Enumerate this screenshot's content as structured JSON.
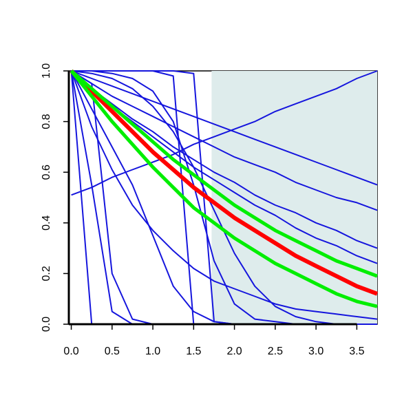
{
  "chart_data": {
    "type": "line",
    "x": [
      0,
      0.25,
      0.5,
      0.75,
      1,
      1.25,
      1.5,
      1.75,
      2,
      2.25,
      2.5,
      2.75,
      3,
      3.25,
      3.5,
      3.75
    ],
    "xlim": [
      -0.03,
      3.75
    ],
    "ylim": [
      0,
      1
    ],
    "xticks": [
      {
        "value": 0,
        "label": "0.0"
      },
      0.5,
      {
        "value": 1,
        "label": "1.0"
      },
      1.5,
      {
        "value": 2,
        "label": "2.0"
      },
      2.5,
      {
        "value": 3,
        "label": "3.0"
      },
      3.5
    ],
    "yticks": [
      {
        "value": 0,
        "label": "0.0"
      },
      0.2,
      0.4,
      0.6,
      0.8,
      {
        "value": 1,
        "label": "1.0"
      }
    ],
    "shaded_region": {
      "xmin": 1.72,
      "xmax": 3.75,
      "ymin": 0,
      "ymax": 1,
      "color": "#deecec"
    },
    "series": [
      {
        "color": "#1515dd",
        "line_width": 2,
        "values": [
          1,
          0.97,
          0.94,
          0.91,
          0.88,
          0.85,
          0.82,
          0.79,
          0.76,
          0.73,
          0.7,
          0.67,
          0.64,
          0.61,
          0.58,
          0.55
        ]
      },
      {
        "color": "#1515dd",
        "line_width": 2,
        "values": [
          0.51,
          0.54,
          0.58,
          0.61,
          0.64,
          0.67,
          0.71,
          0.74,
          0.77,
          0.8,
          0.84,
          0.87,
          0.9,
          0.93,
          0.97,
          1
        ]
      },
      {
        "color": "#1515dd",
        "line_width": 2,
        "values": [
          1,
          0.95,
          0.9,
          0.86,
          0.82,
          0.78,
          0.74,
          0.7,
          0.66,
          0.63,
          0.6,
          0.56,
          0.53,
          0.5,
          0.48,
          0.45
        ]
      },
      {
        "color": "#1515dd",
        "line_width": 2,
        "values": [
          1,
          0.93,
          0.87,
          0.81,
          0.76,
          0.7,
          0.65,
          0.6,
          0.56,
          0.51,
          0.47,
          0.44,
          0.4,
          0.37,
          0.33,
          0.3
        ]
      },
      {
        "color": "#1515dd",
        "line_width": 2,
        "values": [
          1,
          0.93,
          0.86,
          0.8,
          0.74,
          0.68,
          0.62,
          0.57,
          0.52,
          0.47,
          0.43,
          0.38,
          0.34,
          0.31,
          0.27,
          0.24
        ]
      },
      {
        "color": "#1515dd",
        "line_width": 2,
        "values": [
          1,
          1,
          1,
          1,
          1,
          0.98,
          0,
          0,
          0,
          0,
          0,
          0,
          0,
          0,
          0,
          0
        ]
      },
      {
        "color": "#1515dd",
        "line_width": 2,
        "values": [
          1,
          1,
          1,
          1,
          1,
          1,
          0.99,
          0.01,
          0,
          0,
          0,
          0,
          0,
          0,
          0,
          0
        ]
      },
      {
        "color": "#1515dd",
        "line_width": 2,
        "values": [
          1,
          0,
          0,
          0,
          0,
          0,
          0,
          0,
          0,
          0,
          0,
          0,
          0,
          0,
          0,
          0
        ]
      },
      {
        "color": "#1515dd",
        "line_width": 2,
        "values": [
          1,
          0.55,
          0.05,
          0,
          0,
          0,
          0,
          0,
          0,
          0,
          0,
          0,
          0,
          0,
          0,
          0
        ]
      },
      {
        "color": "#1515dd",
        "line_width": 2,
        "values": [
          1,
          0.78,
          0.61,
          0.47,
          0.37,
          0.29,
          0.22,
          0.17,
          0.14,
          0.11,
          0.08,
          0.06,
          0.05,
          0.04,
          0.03,
          0.02
        ]
      },
      {
        "color": "#1515dd",
        "line_width": 2,
        "values": [
          1,
          1,
          0.99,
          0.97,
          0.92,
          0.8,
          0.55,
          0.25,
          0.08,
          0.02,
          0.01,
          0,
          0,
          0,
          0,
          0
        ]
      },
      {
        "color": "#1515dd",
        "line_width": 2,
        "values": [
          1,
          0.85,
          0.7,
          0.55,
          0.35,
          0.15,
          0.05,
          0.01,
          0,
          0,
          0,
          0,
          0,
          0,
          0,
          0
        ]
      },
      {
        "color": "#1515dd",
        "line_width": 2,
        "values": [
          1,
          0.99,
          0.97,
          0.93,
          0.86,
          0.76,
          0.62,
          0.45,
          0.28,
          0.15,
          0.07,
          0.03,
          0.01,
          0,
          0,
          0
        ]
      },
      {
        "color": "#1515dd",
        "line_width": 2,
        "values": [
          1,
          0.95,
          0.2,
          0.02,
          0,
          0,
          0,
          0,
          0,
          0,
          0,
          0,
          0,
          0,
          0,
          0
        ]
      },
      {
        "color": "#ff0000",
        "line_width": 6,
        "values": [
          1,
          0.92,
          0.84,
          0.76,
          0.68,
          0.61,
          0.54,
          0.48,
          0.42,
          0.37,
          0.32,
          0.27,
          0.23,
          0.19,
          0.15,
          0.12
        ]
      },
      {
        "color": "#00ee00",
        "line_width": 5,
        "values": [
          1,
          0.93,
          0.86,
          0.79,
          0.72,
          0.65,
          0.59,
          0.53,
          0.47,
          0.42,
          0.37,
          0.33,
          0.29,
          0.25,
          0.22,
          0.19
        ]
      },
      {
        "color": "#00ee00",
        "line_width": 5,
        "values": [
          1,
          0.9,
          0.8,
          0.71,
          0.62,
          0.54,
          0.46,
          0.4,
          0.34,
          0.29,
          0.24,
          0.2,
          0.16,
          0.12,
          0.09,
          0.07
        ]
      }
    ]
  }
}
